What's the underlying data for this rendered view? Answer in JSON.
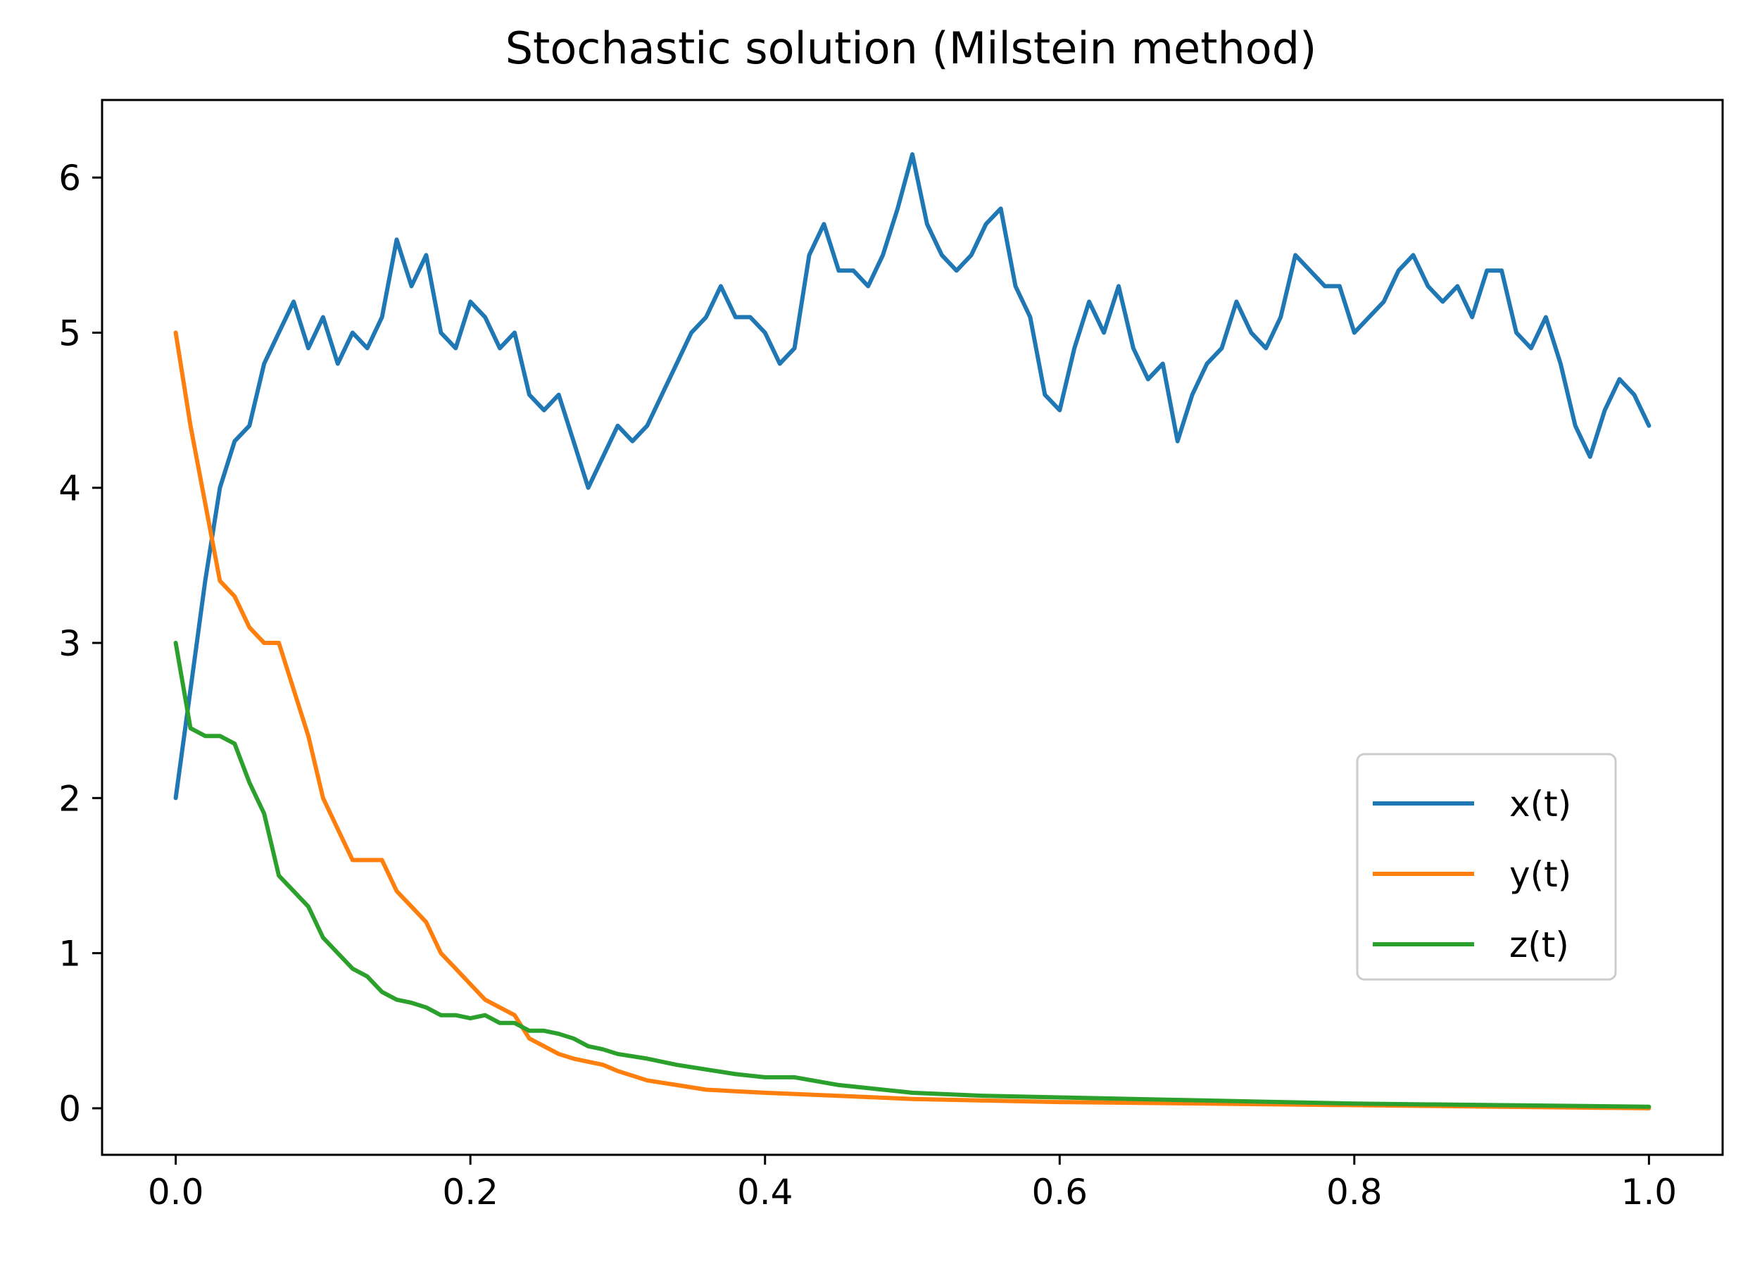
{
  "chart_data": {
    "type": "line",
    "title": "Stochastic solution (Milstein method)",
    "xlabel": "",
    "ylabel": "",
    "xlim": [
      -0.05,
      1.05
    ],
    "ylim": [
      -0.3,
      6.5
    ],
    "xticks": [
      0.0,
      0.2,
      0.4,
      0.6,
      0.8,
      1.0
    ],
    "xtick_labels": [
      "0.0",
      "0.2",
      "0.4",
      "0.6",
      "0.8",
      "1.0"
    ],
    "yticks": [
      0,
      1,
      2,
      3,
      4,
      5,
      6
    ],
    "ytick_labels": [
      "0",
      "1",
      "2",
      "3",
      "4",
      "5",
      "6"
    ],
    "grid": false,
    "legend_position": "center-right",
    "series": [
      {
        "name": "x(t)",
        "color": "#1f77b4",
        "x": [
          0.0,
          0.01,
          0.02,
          0.03,
          0.04,
          0.05,
          0.06,
          0.07,
          0.08,
          0.09,
          0.1,
          0.11,
          0.12,
          0.13,
          0.14,
          0.15,
          0.16,
          0.17,
          0.18,
          0.19,
          0.2,
          0.21,
          0.22,
          0.23,
          0.24,
          0.25,
          0.26,
          0.27,
          0.28,
          0.29,
          0.3,
          0.31,
          0.32,
          0.33,
          0.34,
          0.35,
          0.36,
          0.37,
          0.38,
          0.39,
          0.4,
          0.41,
          0.42,
          0.43,
          0.44,
          0.45,
          0.46,
          0.47,
          0.48,
          0.49,
          0.5,
          0.51,
          0.52,
          0.53,
          0.54,
          0.55,
          0.56,
          0.57,
          0.58,
          0.59,
          0.6,
          0.61,
          0.62,
          0.63,
          0.64,
          0.65,
          0.66,
          0.67,
          0.68,
          0.69,
          0.7,
          0.71,
          0.72,
          0.73,
          0.74,
          0.75,
          0.76,
          0.77,
          0.78,
          0.79,
          0.8,
          0.81,
          0.82,
          0.83,
          0.84,
          0.85,
          0.86,
          0.87,
          0.88,
          0.89,
          0.9,
          0.91,
          0.92,
          0.93,
          0.94,
          0.95,
          0.96,
          0.97,
          0.98,
          0.99,
          1.0
        ],
        "values": [
          2.0,
          2.7,
          3.4,
          4.0,
          4.3,
          4.4,
          4.8,
          5.0,
          5.2,
          4.9,
          5.1,
          4.8,
          5.0,
          4.9,
          5.1,
          5.6,
          5.3,
          5.5,
          5.0,
          4.9,
          5.2,
          5.1,
          4.9,
          5.0,
          4.6,
          4.5,
          4.6,
          4.3,
          4.0,
          4.2,
          4.4,
          4.3,
          4.4,
          4.6,
          4.8,
          5.0,
          5.1,
          5.3,
          5.1,
          5.1,
          5.0,
          4.8,
          4.9,
          5.5,
          5.7,
          5.4,
          5.4,
          5.3,
          5.5,
          5.8,
          6.15,
          5.7,
          5.5,
          5.4,
          5.5,
          5.7,
          5.8,
          5.3,
          5.1,
          4.6,
          4.5,
          4.9,
          5.2,
          5.0,
          5.3,
          4.9,
          4.7,
          4.8,
          4.3,
          4.6,
          4.8,
          4.9,
          5.2,
          5.0,
          4.9,
          5.1,
          5.5,
          5.4,
          5.3,
          5.3,
          5.0,
          5.1,
          5.2,
          5.4,
          5.5,
          5.3,
          5.2,
          5.3,
          5.1,
          5.4,
          5.4,
          5.0,
          4.9,
          5.1,
          4.8,
          4.4,
          4.2,
          4.5,
          4.7,
          4.6,
          4.4
        ]
      },
      {
        "name": "y(t)",
        "color": "#ff7f0e",
        "x": [
          0.0,
          0.01,
          0.02,
          0.03,
          0.04,
          0.05,
          0.06,
          0.07,
          0.08,
          0.09,
          0.1,
          0.11,
          0.12,
          0.13,
          0.14,
          0.15,
          0.16,
          0.17,
          0.18,
          0.19,
          0.2,
          0.21,
          0.22,
          0.23,
          0.24,
          0.25,
          0.26,
          0.27,
          0.28,
          0.29,
          0.3,
          0.32,
          0.34,
          0.36,
          0.38,
          0.4,
          0.45,
          0.5,
          0.55,
          0.6,
          0.7,
          0.8,
          0.9,
          1.0
        ],
        "values": [
          5.0,
          4.4,
          3.9,
          3.4,
          3.3,
          3.1,
          3.0,
          3.0,
          2.7,
          2.4,
          2.0,
          1.8,
          1.6,
          1.6,
          1.6,
          1.4,
          1.3,
          1.2,
          1.0,
          0.9,
          0.8,
          0.7,
          0.65,
          0.6,
          0.45,
          0.4,
          0.35,
          0.32,
          0.3,
          0.28,
          0.24,
          0.18,
          0.15,
          0.12,
          0.11,
          0.1,
          0.08,
          0.06,
          0.05,
          0.04,
          0.03,
          0.02,
          0.01,
          0.0
        ]
      },
      {
        "name": "z(t)",
        "color": "#2ca02c",
        "x": [
          0.0,
          0.01,
          0.02,
          0.03,
          0.04,
          0.05,
          0.06,
          0.07,
          0.08,
          0.09,
          0.1,
          0.11,
          0.12,
          0.13,
          0.14,
          0.15,
          0.16,
          0.17,
          0.18,
          0.19,
          0.2,
          0.21,
          0.22,
          0.23,
          0.24,
          0.25,
          0.26,
          0.27,
          0.28,
          0.29,
          0.3,
          0.32,
          0.34,
          0.36,
          0.38,
          0.4,
          0.42,
          0.45,
          0.5,
          0.55,
          0.6,
          0.7,
          0.8,
          0.9,
          1.0
        ],
        "values": [
          3.0,
          2.45,
          2.4,
          2.4,
          2.35,
          2.1,
          1.9,
          1.5,
          1.4,
          1.3,
          1.1,
          1.0,
          0.9,
          0.85,
          0.75,
          0.7,
          0.68,
          0.65,
          0.6,
          0.6,
          0.58,
          0.6,
          0.55,
          0.55,
          0.5,
          0.5,
          0.48,
          0.45,
          0.4,
          0.38,
          0.35,
          0.32,
          0.28,
          0.25,
          0.22,
          0.2,
          0.2,
          0.15,
          0.1,
          0.08,
          0.07,
          0.05,
          0.03,
          0.02,
          0.01
        ]
      }
    ]
  }
}
